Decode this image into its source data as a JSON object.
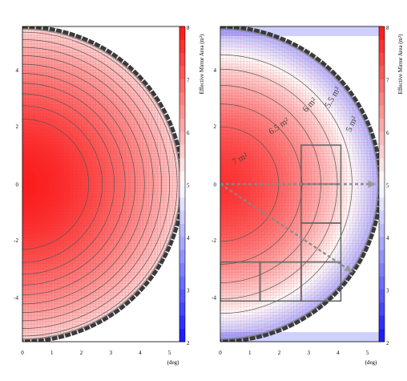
{
  "chart_data": [
    {
      "type": "heatmap",
      "title": "",
      "xlabel": "(deg)",
      "ylabel": "",
      "xlim": [
        0,
        5.5
      ],
      "ylim": [
        -5.5,
        5.5
      ],
      "x_ticks": [
        "0",
        "1",
        "2",
        "3",
        "4",
        "5"
      ],
      "y_ticks": [
        "4",
        "2",
        "0",
        "-2",
        "-4"
      ],
      "field_radius_deg": 5.45,
      "center_value": 7.9,
      "edge_value": 5.45,
      "contour_levels": [
        5.6,
        5.8,
        6.0,
        6.2,
        6.4,
        6.6,
        6.8,
        7.0,
        7.2,
        7.4
      ],
      "colorbar": {
        "label": "Effective Mirror Area (m²)",
        "min": 2,
        "max": 8,
        "ticks": [
          "2",
          "3",
          "4",
          "5",
          "6",
          "7",
          "8"
        ]
      }
    },
    {
      "type": "heatmap",
      "title": "",
      "xlabel": "(deg)",
      "ylabel": "",
      "xlim": [
        0,
        5.5
      ],
      "ylim": [
        -5.5,
        5.5
      ],
      "x_ticks": [
        "0",
        "1",
        "2",
        "3",
        "4",
        "5"
      ],
      "y_ticks": [
        "4",
        "2",
        "0",
        "-2",
        "-4"
      ],
      "field_radius_deg": 5.45,
      "center_value": 7.6,
      "edge_value": 3.9,
      "contour_levels": [
        5.0,
        5.5,
        6.0,
        6.5,
        7.0
      ],
      "contour_labels": [
        {
          "text": "7 m²",
          "value": 7.0
        },
        {
          "text": "6.5 m²",
          "value": 6.5
        },
        {
          "text": "6 m²",
          "value": 6.0
        },
        {
          "text": "5.5 m²",
          "value": 5.5
        },
        {
          "text": "5 m²",
          "value": 5.0
        }
      ],
      "colorbar": {
        "label": "Effective Mirror Area (m²)",
        "min": 2,
        "max": 8,
        "ticks": [
          "2",
          "3",
          "4",
          "5",
          "6",
          "7",
          "8"
        ]
      },
      "overlay_boxes": [
        {
          "x": [
            2.75,
            4.1
          ],
          "y": [
            1.35,
            0.0
          ]
        },
        {
          "x": [
            2.75,
            4.1
          ],
          "y": [
            -1.35,
            0.0
          ]
        },
        {
          "x": [
            2.75,
            4.1
          ],
          "y": [
            -2.7,
            -1.35
          ]
        },
        {
          "x": [
            0.0,
            1.35
          ],
          "y": [
            -4.05,
            -2.7
          ]
        },
        {
          "x": [
            1.35,
            2.75
          ],
          "y": [
            -4.05,
            -2.7
          ]
        },
        {
          "x": [
            2.75,
            4.1
          ],
          "y": [
            -4.05,
            -2.7
          ]
        }
      ],
      "overlay_arrows": [
        {
          "from": [
            0,
            0
          ],
          "to": [
            5.3,
            0
          ]
        },
        {
          "from": [
            0,
            0
          ],
          "to": [
            4.5,
            -3.05
          ]
        }
      ]
    }
  ]
}
